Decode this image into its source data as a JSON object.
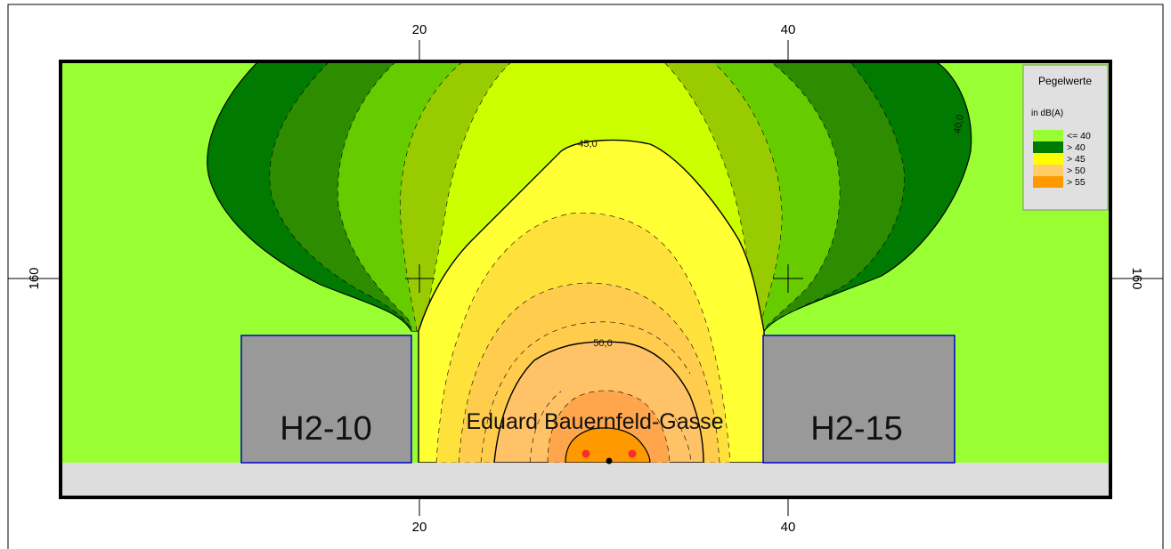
{
  "map": {
    "axis": {
      "x_ticks": [
        "20",
        "40"
      ],
      "y_ticks": [
        "160"
      ]
    },
    "buildings": [
      {
        "label": "H2-10"
      },
      {
        "label": "H2-15"
      }
    ],
    "street_label": "Eduard Bauernfeld-Gasse",
    "contour_labels": [
      "45,0",
      "50,0",
      "40,0"
    ],
    "colors": {
      "le40": "#99ff33",
      "gt40_dark": "#007a00",
      "band2": "#2d8c00",
      "band3": "#66cc00",
      "band4": "#99cc00",
      "band5": "#ccff00",
      "gt45": "#ffff33",
      "band7": "#ffe13c",
      "gt50": "#ffcc4d",
      "band9": "#ffc266",
      "band10": "#ffa64d",
      "gt55": "#ff9900",
      "building": "#999999",
      "building_outline": "#0000cc",
      "ground": "#dddddd"
    }
  },
  "legend": {
    "title": "Pegelwerte",
    "unit": "in dB(A)",
    "items": [
      {
        "label": "<= 40",
        "color": "#99ff33"
      },
      {
        "label": ">  40",
        "color": "#007a00"
      },
      {
        "label": ">  45",
        "color": "#ffff00"
      },
      {
        "label": ">  50",
        "color": "#ffcc66"
      },
      {
        "label": ">  55",
        "color": "#ff9900"
      }
    ]
  }
}
